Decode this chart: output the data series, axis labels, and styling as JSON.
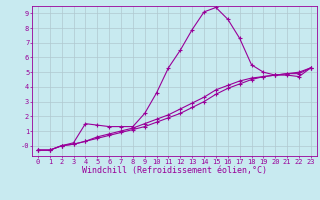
{
  "background_color": "#c8eaf0",
  "grid_color": "#b0c8d0",
  "line_color": "#990099",
  "marker": "+",
  "xlabel": "Windchill (Refroidissement éolien,°C)",
  "xlim": [
    -0.5,
    23.5
  ],
  "ylim": [
    -0.7,
    9.5
  ],
  "xticks": [
    0,
    1,
    2,
    3,
    4,
    5,
    6,
    7,
    8,
    9,
    10,
    11,
    12,
    13,
    14,
    15,
    16,
    17,
    18,
    19,
    20,
    21,
    22,
    23
  ],
  "yticks": [
    0,
    1,
    2,
    3,
    4,
    5,
    6,
    7,
    8,
    9
  ],
  "ytick_labels": [
    "-0",
    "1",
    "2",
    "3",
    "4",
    "5",
    "6",
    "7",
    "8",
    "9"
  ],
  "series1_x": [
    0,
    1,
    2,
    3,
    4,
    5,
    6,
    7,
    8,
    9,
    10,
    11,
    12,
    13,
    14,
    15,
    16,
    17,
    18,
    19,
    20,
    21,
    22,
    23
  ],
  "series1_y": [
    -0.3,
    -0.3,
    -0.0,
    0.2,
    1.5,
    1.4,
    1.3,
    1.3,
    1.3,
    2.2,
    3.6,
    5.3,
    6.5,
    7.9,
    9.1,
    9.4,
    8.6,
    7.3,
    5.5,
    5.0,
    4.8,
    4.8,
    4.7,
    5.3
  ],
  "series2_x": [
    0,
    1,
    2,
    3,
    4,
    5,
    6,
    7,
    8,
    9,
    10,
    11,
    12,
    13,
    14,
    15,
    16,
    17,
    18,
    19,
    20,
    21,
    22,
    23
  ],
  "series2_y": [
    -0.3,
    -0.3,
    -0.0,
    0.1,
    0.3,
    0.5,
    0.7,
    0.9,
    1.1,
    1.3,
    1.6,
    1.9,
    2.2,
    2.6,
    3.0,
    3.5,
    3.9,
    4.2,
    4.5,
    4.7,
    4.8,
    4.9,
    5.0,
    5.3
  ],
  "series3_x": [
    0,
    1,
    2,
    3,
    4,
    5,
    6,
    7,
    8,
    9,
    10,
    11,
    12,
    13,
    14,
    15,
    16,
    17,
    18,
    19,
    20,
    21,
    22,
    23
  ],
  "series3_y": [
    -0.3,
    -0.3,
    0.0,
    0.1,
    0.3,
    0.6,
    0.8,
    1.0,
    1.2,
    1.5,
    1.8,
    2.1,
    2.5,
    2.9,
    3.3,
    3.8,
    4.1,
    4.4,
    4.6,
    4.7,
    4.8,
    4.9,
    4.9,
    5.3
  ],
  "font_family": "monospace",
  "font_color": "#990099",
  "tick_fontsize": 5.0,
  "label_fontsize": 6.0,
  "linewidth": 0.8,
  "markersize": 3,
  "markeredgewidth": 0.8
}
